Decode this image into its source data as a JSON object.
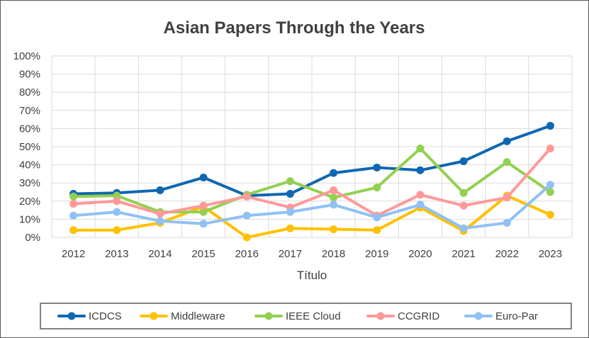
{
  "chart_data": {
    "type": "line",
    "title": "Asian Papers Through the Years",
    "xlabel": "Título",
    "ylabel": "",
    "x": [
      "2012",
      "2013",
      "2014",
      "2015",
      "2016",
      "2017",
      "2018",
      "2019",
      "2020",
      "2021",
      "2022",
      "2023"
    ],
    "y_ticks": [
      "0%",
      "10%",
      "20%",
      "30%",
      "40%",
      "50%",
      "60%",
      "70%",
      "80%",
      "90%",
      "100%"
    ],
    "ylim": [
      0,
      100
    ],
    "grid": true,
    "legend_position": "bottom",
    "series": [
      {
        "name": "ICDCS",
        "color": "#0f67b1",
        "values": [
          24,
          24.5,
          26,
          33,
          23,
          24,
          35.5,
          38.5,
          37,
          42,
          53,
          61.5
        ]
      },
      {
        "name": "Middleware",
        "color": "#ffc000",
        "values": [
          4,
          4,
          8,
          17,
          0,
          5,
          4.5,
          4,
          16.5,
          3.5,
          23,
          12.5
        ]
      },
      {
        "name": "IEEE Cloud",
        "color": "#92d050",
        "values": [
          22.5,
          23,
          14,
          14,
          23.5,
          31,
          22,
          27.5,
          49,
          24.5,
          41.5,
          25
        ]
      },
      {
        "name": "CCGRID",
        "color": "#ff9999",
        "values": [
          18.5,
          20,
          13,
          17.5,
          22.5,
          16.5,
          26,
          12,
          23.5,
          17.5,
          22,
          49
        ]
      },
      {
        "name": "Euro-Par",
        "color": "#8fc1f5",
        "values": [
          12,
          14,
          9,
          7.5,
          12,
          14,
          18,
          11,
          18,
          5,
          8,
          29
        ]
      }
    ]
  }
}
